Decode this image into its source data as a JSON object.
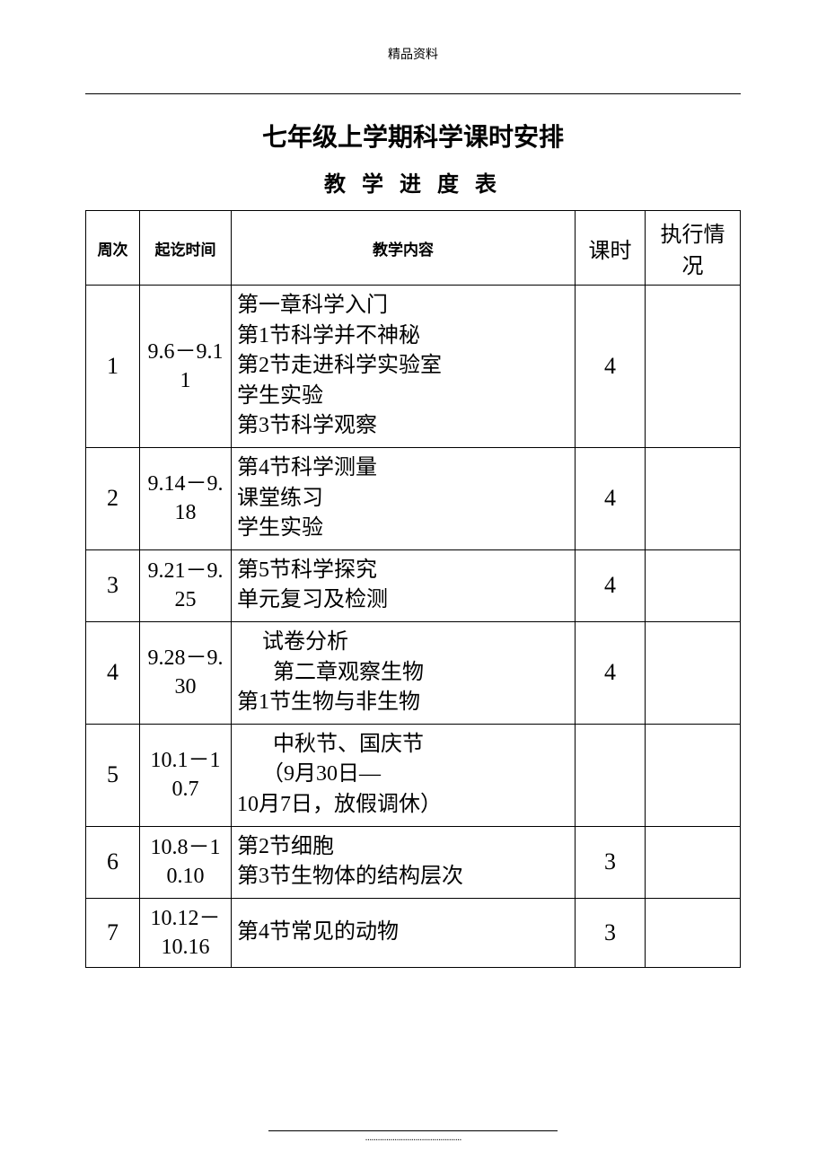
{
  "header_note": "精品资料",
  "main_title": "七年级上学期科学课时安排",
  "sub_title": "教 学 进 度 表",
  "columns": {
    "week": "周次",
    "dates": "起讫时间",
    "content": "教学内容",
    "hours": "课时",
    "status": "执行情况"
  },
  "rows": [
    {
      "week": "1",
      "dates": "9.6－9.11",
      "content_lines": [
        {
          "text": "第一章科学入门",
          "indent": 0
        },
        {
          "text": "第1节科学并不神秘",
          "indent": 0
        },
        {
          "text": "第2节走进科学实验室",
          "indent": 0
        },
        {
          "text": "学生实验",
          "indent": 0
        },
        {
          "text": "第3节科学观察",
          "indent": 0
        }
      ],
      "hours": "4",
      "status": ""
    },
    {
      "week": "2",
      "dates": "9.14－9.18",
      "content_lines": [
        {
          "text": "第4节科学测量",
          "indent": 0
        },
        {
          "text": "课堂练习",
          "indent": 0
        },
        {
          "text": "学生实验",
          "indent": 0
        }
      ],
      "hours": "4",
      "status": ""
    },
    {
      "week": "3",
      "dates": "9.21－9.25",
      "content_lines": [
        {
          "text": "第5节科学探究",
          "indent": 0
        },
        {
          "text": "单元复习及检测",
          "indent": 0
        }
      ],
      "hours": "4",
      "status": ""
    },
    {
      "week": "4",
      "dates": "9.28－9.30",
      "content_lines": [
        {
          "text": "试卷分析",
          "indent": 1
        },
        {
          "text": "第二章观察生物",
          "indent": 2
        },
        {
          "text": "第1节生物与非生物",
          "indent": 0
        }
      ],
      "hours": "4",
      "status": ""
    },
    {
      "week": "5",
      "dates": "10.1－10.7",
      "content_lines": [
        {
          "text": "中秋节、国庆节",
          "indent": 2
        },
        {
          "text": "（9月30日—",
          "indent": 1
        },
        {
          "text": "10月7日，放假调休）",
          "indent": 0
        }
      ],
      "hours": "",
      "status": ""
    },
    {
      "week": "6",
      "dates": "10.8－10.10",
      "content_lines": [
        {
          "text": "第2节细胞",
          "indent": 0
        },
        {
          "text": "第3节生物体的结构层次",
          "indent": 0
        }
      ],
      "hours": "3",
      "status": ""
    },
    {
      "week": "7",
      "dates": "10.12－10.16",
      "content_lines": [
        {
          "text": "第4节常见的动物",
          "indent": 0
        }
      ],
      "hours": "3",
      "status": ""
    }
  ],
  "footer_dots": "··············································"
}
